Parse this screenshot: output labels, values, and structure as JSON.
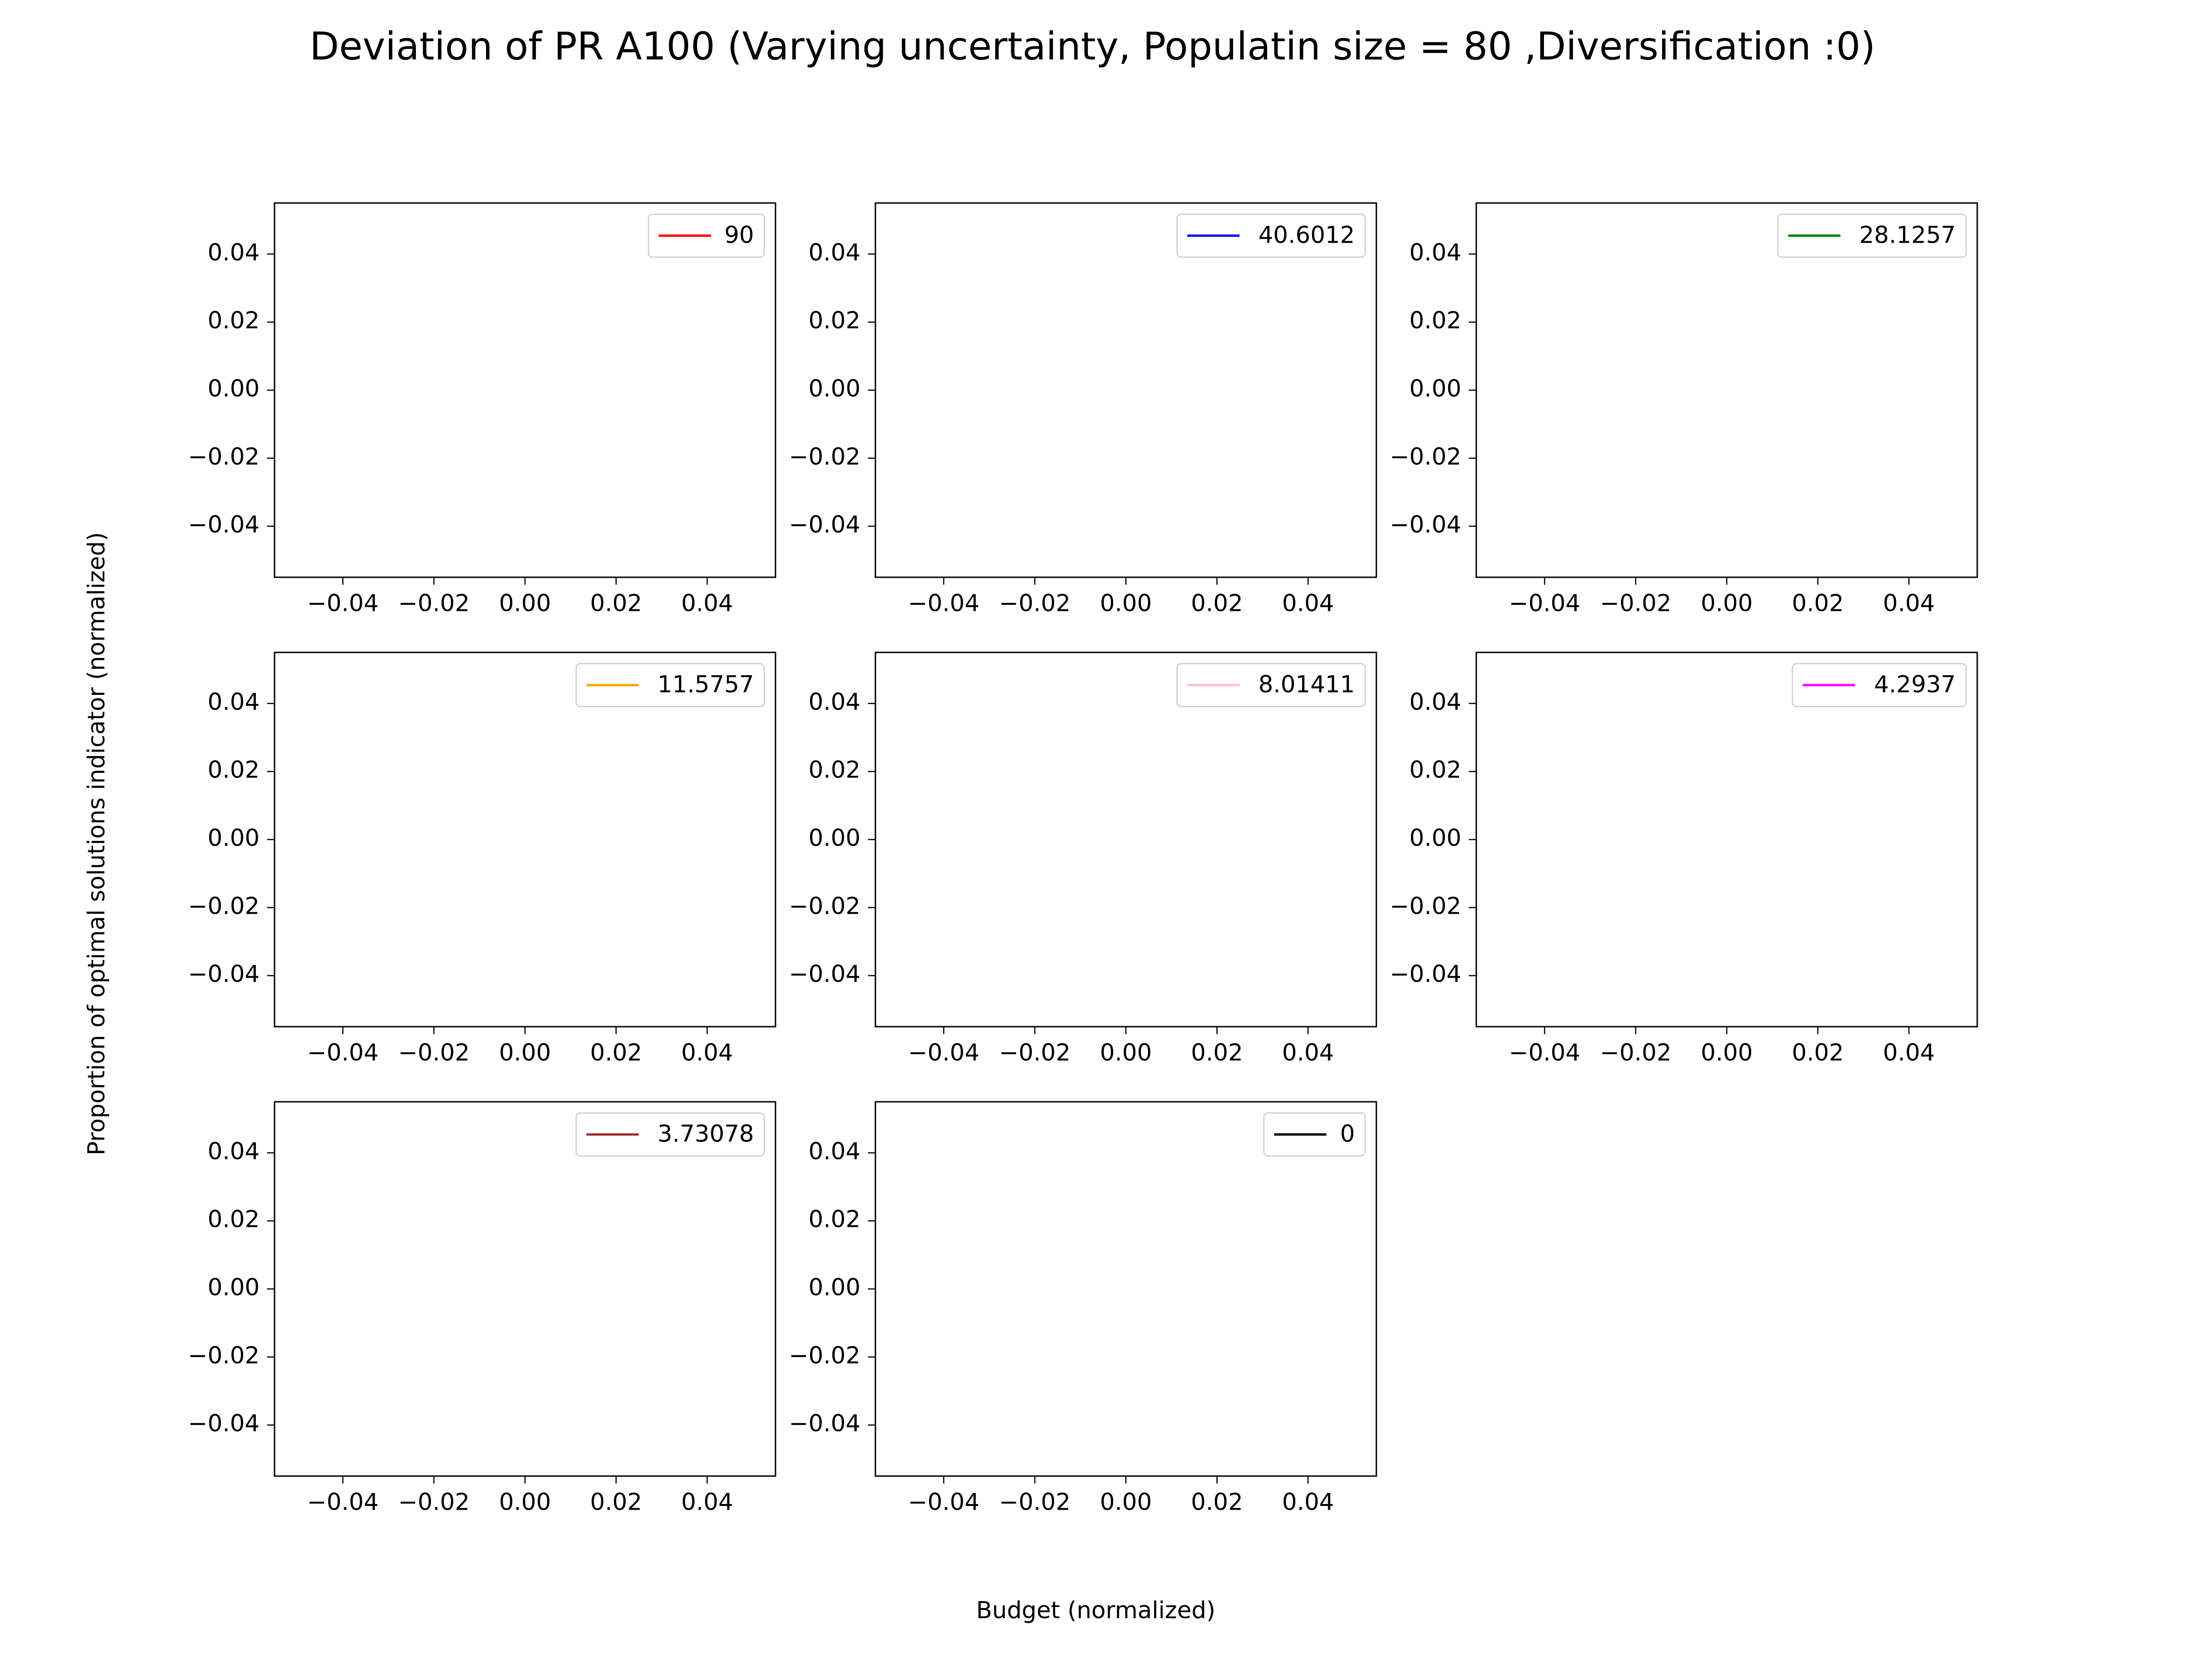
{
  "chart_data": {
    "type": "line",
    "title": "Deviation of PR  A100 (Varying uncertainty, Populatin size = 80 ,Diversification :0)",
    "xlabel": "Budget (normalized)",
    "ylabel": "Proportion of optimal solutions indicator (normalized)",
    "xlim": [
      -0.055,
      0.055
    ],
    "ylim": [
      -0.055,
      0.055
    ],
    "xticks": [
      -0.04,
      -0.02,
      0.0,
      0.02,
      0.04
    ],
    "yticks": [
      -0.04,
      -0.02,
      0.0,
      0.02,
      0.04
    ],
    "xtick_labels": [
      "−0.04",
      "−0.02",
      "0.00",
      "0.02",
      "0.04"
    ],
    "ytick_labels": [
      "−0.04",
      "−0.02",
      "0.00",
      "0.02",
      "0.04"
    ],
    "grid": false,
    "legend_position": "upper right",
    "layout": {
      "rows": 3,
      "cols": 3
    },
    "subplots": [
      {
        "series": [
          {
            "name": "90",
            "color": "#ff0000",
            "x": [],
            "y": []
          }
        ]
      },
      {
        "series": [
          {
            "name": "40.6012",
            "color": "#0000ff",
            "x": [],
            "y": []
          }
        ]
      },
      {
        "series": [
          {
            "name": "28.1257",
            "color": "#008000",
            "x": [],
            "y": []
          }
        ]
      },
      {
        "series": [
          {
            "name": "11.5757",
            "color": "#ffa500",
            "x": [],
            "y": []
          }
        ]
      },
      {
        "series": [
          {
            "name": "8.01411",
            "color": "#ffc0cb",
            "x": [],
            "y": []
          }
        ]
      },
      {
        "series": [
          {
            "name": "4.2937",
            "color": "#ff00ff",
            "x": [],
            "y": []
          }
        ]
      },
      {
        "series": [
          {
            "name": "3.73078",
            "color": "#a52a2a",
            "x": [],
            "y": []
          }
        ]
      },
      {
        "series": [
          {
            "name": "0",
            "color": "#000000",
            "x": [],
            "y": []
          }
        ]
      }
    ]
  }
}
